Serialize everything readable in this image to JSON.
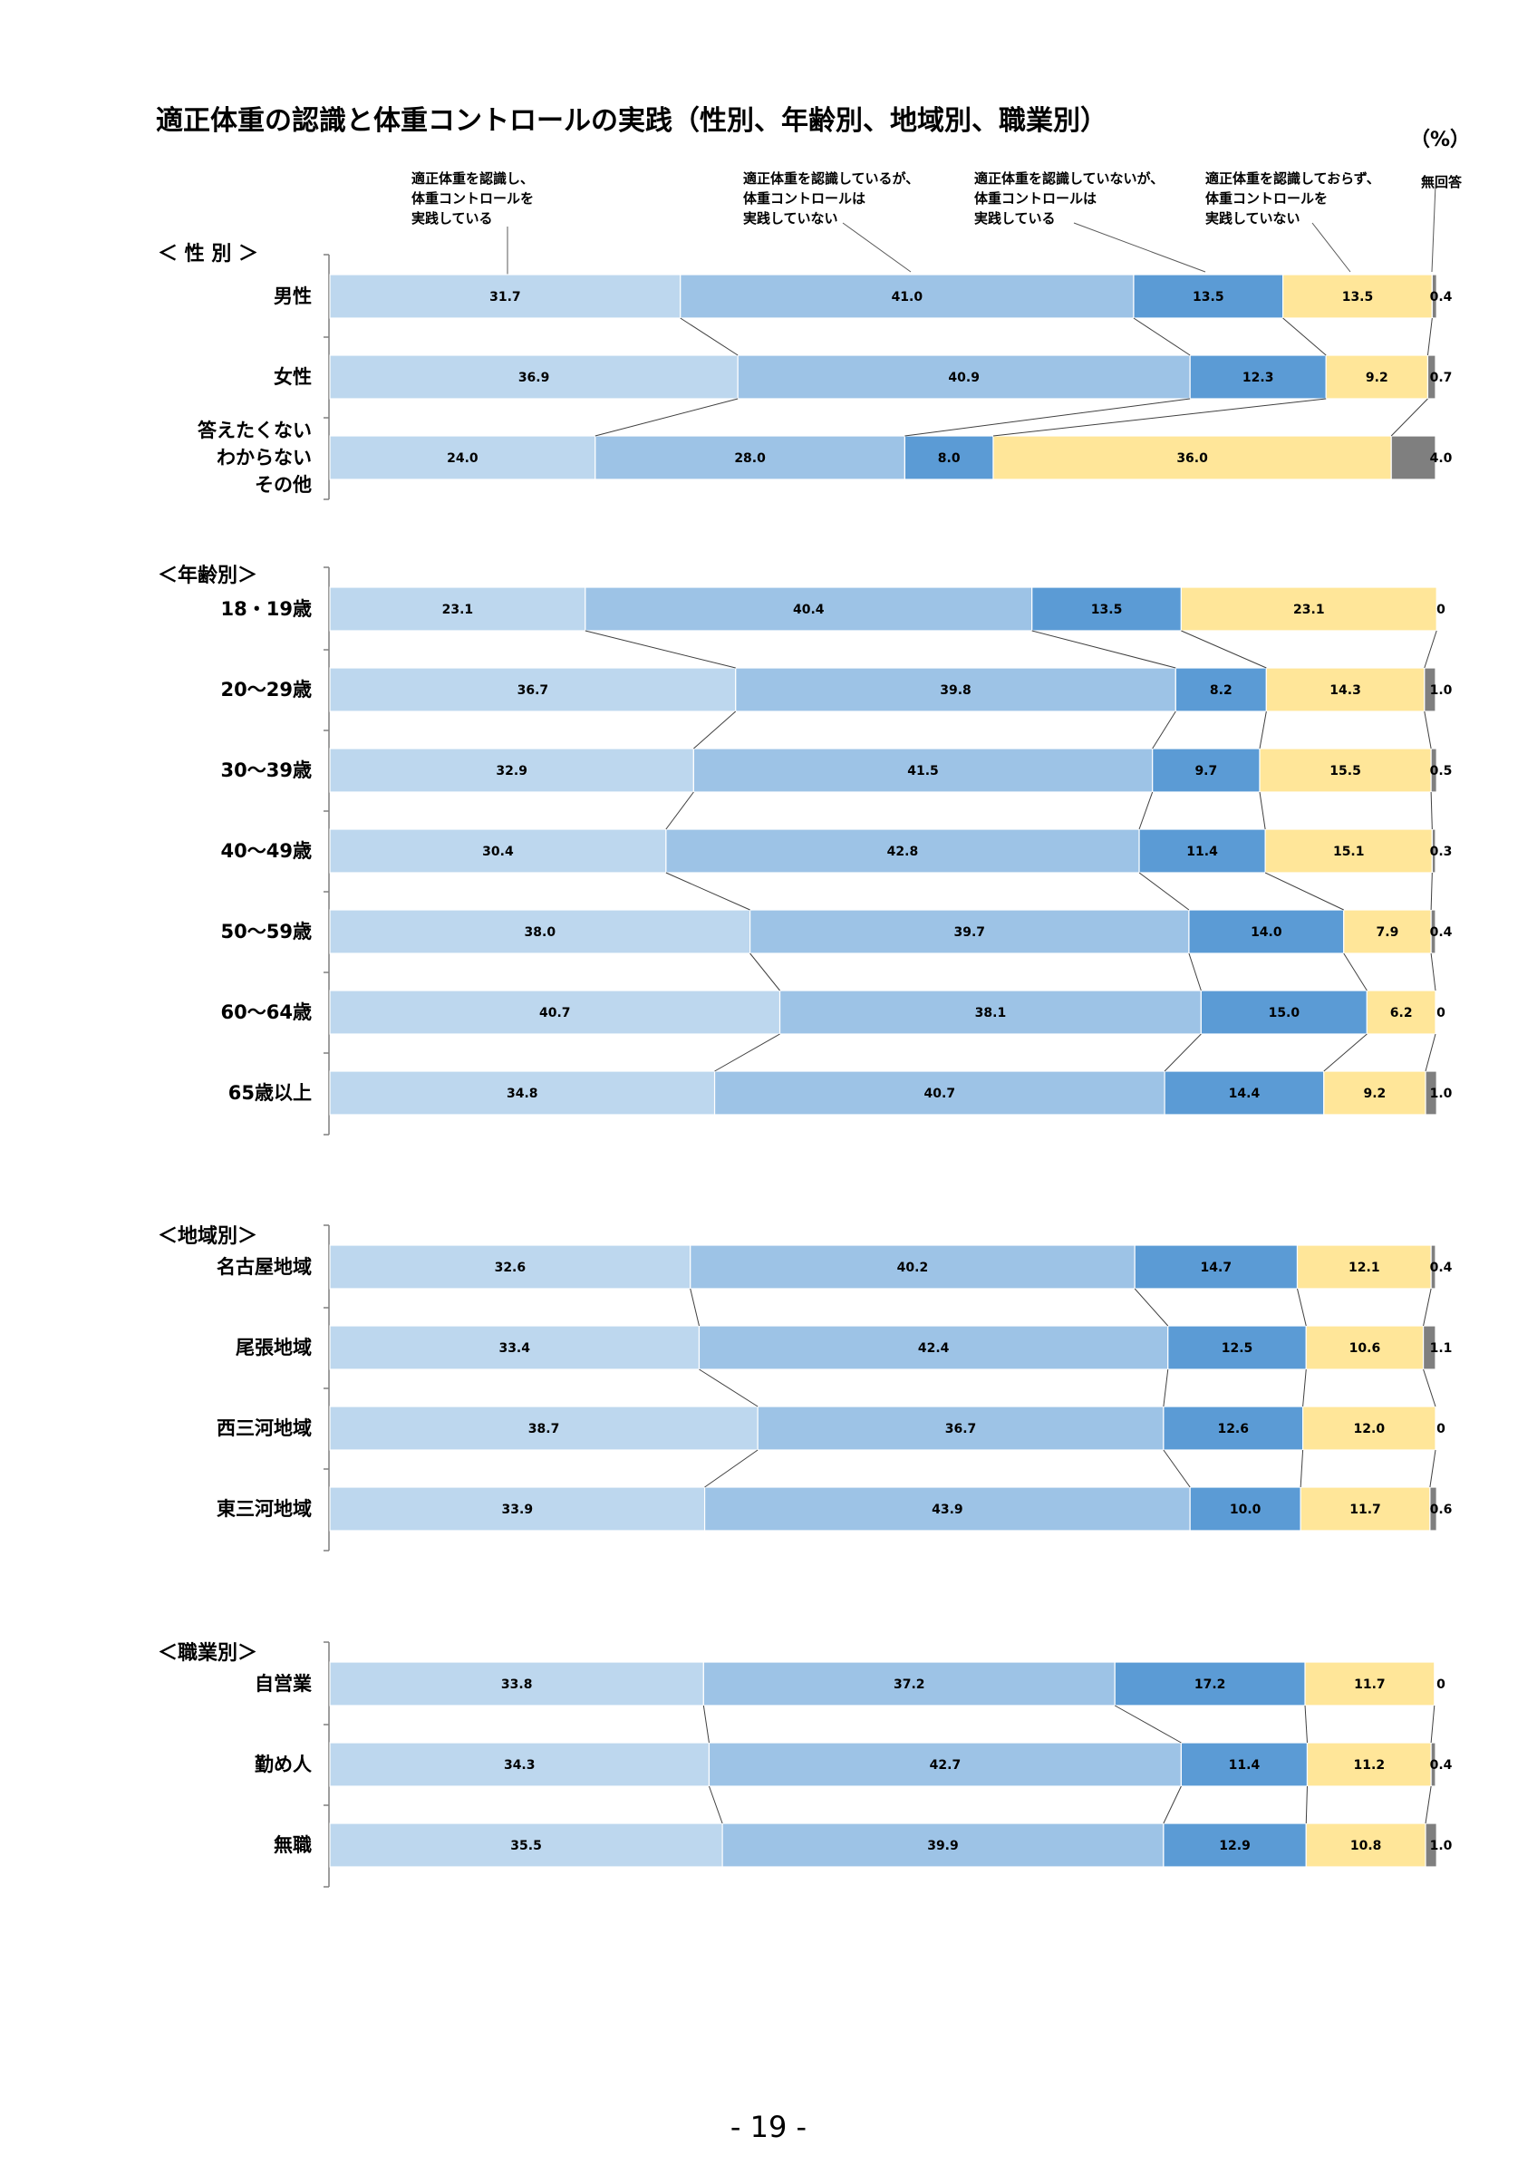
{
  "title": "適正体重の認識と体重コントロールの実践（性別、年齢別、地域別、職業別）",
  "unit": "（%）",
  "page_number": "- 19 -",
  "legend": [
    {
      "label": "適正体重を認識し、\n体重コントロールを\n実践している",
      "color": "#bdd7ee"
    },
    {
      "label": "適正体重を認識しているが、\n体重コントロールは\n実践していない",
      "color": "#9dc3e6"
    },
    {
      "label": "適正体重を認識していないが、\n体重コントロールは\n実践している",
      "color": "#5b9bd5"
    },
    {
      "label": "適正体重を認識しておらず、\n体重コントロールを\n実践していない",
      "color": "#ffe699"
    },
    {
      "label": "無回答",
      "color": "#7f7f7f"
    }
  ],
  "chart_data": {
    "type": "bar",
    "stacked": true,
    "orientation": "horizontal",
    "xlim": [
      0,
      100
    ],
    "series_names": [
      "適正体重を認識し、体重コントロールを実践している",
      "適正体重を認識しているが、体重コントロールは実践していない",
      "適正体重を認識していないが、体重コントロールは実践している",
      "適正体重を認識しておらず、体重コントロールを実践していない",
      "無回答"
    ],
    "groups": [
      {
        "title": "＜ 性  別 ＞",
        "rows": [
          {
            "label": "男性",
            "values": [
              31.7,
              41.0,
              13.5,
              13.5,
              0.4
            ],
            "labels": [
              "31.7",
              "41.0",
              "13.5",
              "13.5",
              "0.4"
            ]
          },
          {
            "label": "女性",
            "values": [
              36.9,
              40.9,
              12.3,
              9.2,
              0.7
            ],
            "labels": [
              "36.9",
              "40.9",
              "12.3",
              "9.2",
              "0.7"
            ]
          },
          {
            "label": "答えたくない\nわからない\nその他",
            "values": [
              24.0,
              28.0,
              8.0,
              36.0,
              4.0
            ],
            "labels": [
              "24.0",
              "28.0",
              "8.0",
              "36.0",
              "4.0"
            ]
          }
        ]
      },
      {
        "title": "＜年齢別＞",
        "rows": [
          {
            "label": "18・19歳",
            "values": [
              23.1,
              40.4,
              13.5,
              23.1,
              0
            ],
            "labels": [
              "23.1",
              "40.4",
              "13.5",
              "23.1",
              "0"
            ]
          },
          {
            "label": "20～29歳",
            "values": [
              36.7,
              39.8,
              8.2,
              14.3,
              1.0
            ],
            "labels": [
              "36.7",
              "39.8",
              "8.2",
              "14.3",
              "1.0"
            ]
          },
          {
            "label": "30～39歳",
            "values": [
              32.9,
              41.5,
              9.7,
              15.5,
              0.5
            ],
            "labels": [
              "32.9",
              "41.5",
              "9.7",
              "15.5",
              "0.5"
            ]
          },
          {
            "label": "40～49歳",
            "values": [
              30.4,
              42.8,
              11.4,
              15.1,
              0.3
            ],
            "labels": [
              "30.4",
              "42.8",
              "11.4",
              "15.1",
              "0.3"
            ]
          },
          {
            "label": "50～59歳",
            "values": [
              38.0,
              39.7,
              14.0,
              7.9,
              0.4
            ],
            "labels": [
              "38.0",
              "39.7",
              "14.0",
              "7.9",
              "0.4"
            ]
          },
          {
            "label": "60～64歳",
            "values": [
              40.7,
              38.1,
              15.0,
              6.2,
              0
            ],
            "labels": [
              "40.7",
              "38.1",
              "15.0",
              "6.2",
              "0"
            ]
          },
          {
            "label": "65歳以上",
            "values": [
              34.8,
              40.7,
              14.4,
              9.2,
              1.0
            ],
            "labels": [
              "34.8",
              "40.7",
              "14.4",
              "9.2",
              "1.0"
            ]
          }
        ]
      },
      {
        "title": "＜地域別＞",
        "rows": [
          {
            "label": "名古屋地域",
            "values": [
              32.6,
              40.2,
              14.7,
              12.1,
              0.4
            ],
            "labels": [
              "32.6",
              "40.2",
              "14.7",
              "12.1",
              "0.4"
            ]
          },
          {
            "label": "尾張地域",
            "values": [
              33.4,
              42.4,
              12.5,
              10.6,
              1.1
            ],
            "labels": [
              "33.4",
              "42.4",
              "12.5",
              "10.6",
              "1.1"
            ]
          },
          {
            "label": "西三河地域",
            "values": [
              38.7,
              36.7,
              12.6,
              12.0,
              0
            ],
            "labels": [
              "38.7",
              "36.7",
              "12.6",
              "12.0",
              "0"
            ]
          },
          {
            "label": "東三河地域",
            "values": [
              33.9,
              43.9,
              10.0,
              11.7,
              0.6
            ],
            "labels": [
              "33.9",
              "43.9",
              "10.0",
              "11.7",
              "0.6"
            ]
          }
        ]
      },
      {
        "title": "＜職業別＞",
        "rows": [
          {
            "label": "自営業",
            "values": [
              33.8,
              37.2,
              17.2,
              11.7,
              0
            ],
            "labels": [
              "33.8",
              "37.2",
              "17.2",
              "11.7",
              "0"
            ]
          },
          {
            "label": "勤め人",
            "values": [
              34.3,
              42.7,
              11.4,
              11.2,
              0.4
            ],
            "labels": [
              "34.3",
              "42.7",
              "11.4",
              "11.2",
              "0.4"
            ]
          },
          {
            "label": "無職",
            "values": [
              35.5,
              39.9,
              12.9,
              10.8,
              1.0
            ],
            "labels": [
              "35.5",
              "39.9",
              "12.9",
              "10.8",
              "1.0"
            ]
          }
        ]
      }
    ]
  }
}
